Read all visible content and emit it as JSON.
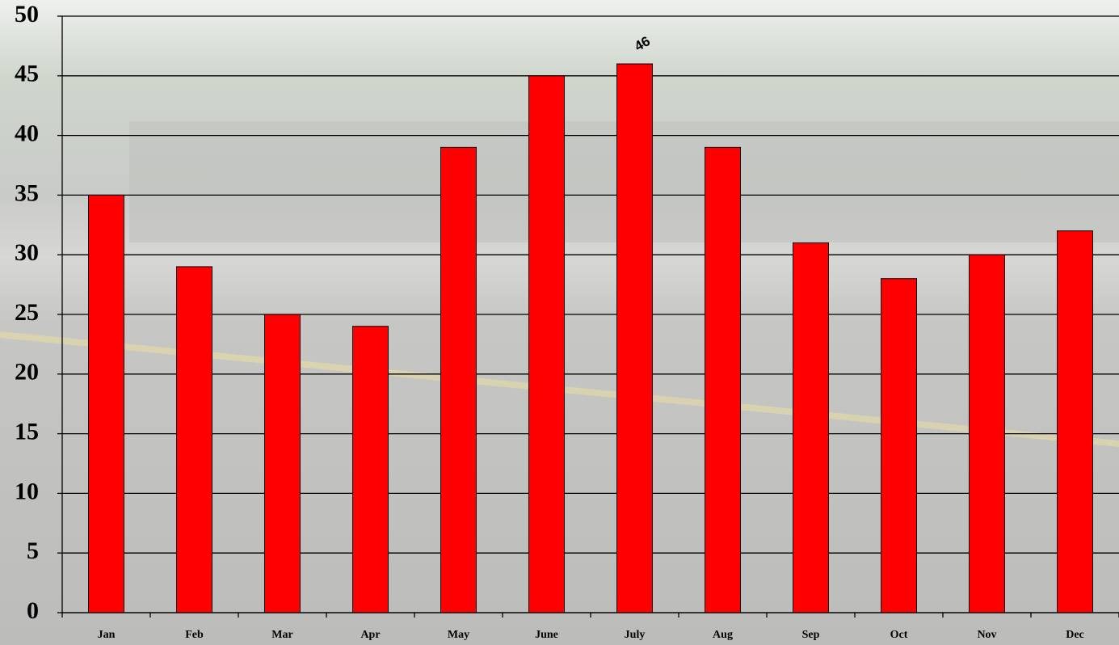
{
  "chart_data": {
    "type": "bar",
    "categories": [
      "Jan",
      "Feb",
      "Mar",
      "Apr",
      "May",
      "June",
      "July",
      "Aug",
      "Sep",
      "Oct",
      "Nov",
      "Dec"
    ],
    "values": [
      35,
      29,
      25,
      24,
      39,
      45,
      46,
      39,
      31,
      28,
      30,
      32
    ],
    "value_labels": [
      null,
      null,
      null,
      null,
      null,
      null,
      "46",
      null,
      null,
      null,
      null,
      null
    ],
    "color": "#ff0000",
    "ylim": [
      0,
      50
    ],
    "yticks": [
      0,
      5,
      10,
      15,
      20,
      25,
      30,
      35,
      40,
      45,
      50
    ],
    "grid": true
  }
}
